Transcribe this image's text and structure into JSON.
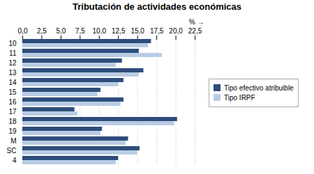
{
  "chart_data": {
    "type": "bar",
    "orientation": "horizontal",
    "title": "Tributación de actividades económicas",
    "xlabel": "%",
    "categories": [
      "4",
      "SC",
      "M",
      "19",
      "18",
      "17",
      "16",
      "15",
      "14",
      "13",
      "12",
      "11",
      "10"
    ],
    "series": [
      {
        "name": "Tipo efectivo atribuible",
        "color": "#2e4d7b",
        "values": [
          12.5,
          15.3,
          13.8,
          10.4,
          20.2,
          6.8,
          13.2,
          10.2,
          13.2,
          15.8,
          13.0,
          15.2,
          16.8
        ]
      },
      {
        "name": "Tipo IRPF",
        "color": "#b8cce4",
        "values": [
          12.2,
          15.0,
          13.5,
          10.2,
          19.8,
          7.2,
          12.8,
          9.8,
          12.5,
          15.2,
          12.2,
          18.2,
          16.4
        ]
      }
    ],
    "xlim": [
      0,
      22.5
    ],
    "xticks": [
      {
        "value": 0.0,
        "label": "0,0"
      },
      {
        "value": 2.5,
        "label": "2,5"
      },
      {
        "value": 5.0,
        "label": "5,0"
      },
      {
        "value": 7.5,
        "label": "7,5"
      },
      {
        "value": 10.0,
        "label": "10,0"
      },
      {
        "value": 12.5,
        "label": "12,5"
      },
      {
        "value": 15.0,
        "label": "15,0"
      },
      {
        "value": 17.5,
        "label": "17,5"
      },
      {
        "value": 20.0,
        "label": "20,0"
      },
      {
        "value": 22.5,
        "label": "22,5"
      }
    ],
    "grid": true,
    "legend": "right"
  }
}
